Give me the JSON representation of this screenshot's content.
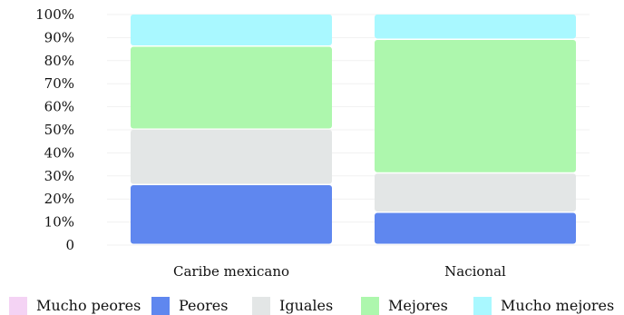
{
  "chart_data": {
    "type": "bar",
    "stacked": true,
    "categories": [
      "Caribe mexicano",
      "Nacional"
    ],
    "series": [
      {
        "name": "Mucho peores",
        "values": [
          0,
          0
        ],
        "color": "#f4d3f4"
      },
      {
        "name": "Peores",
        "values": [
          26,
          14
        ],
        "color": "#5f87ef"
      },
      {
        "name": "Iguales",
        "values": [
          24,
          17
        ],
        "color": "#e3e6e6"
      },
      {
        "name": "Mejores",
        "values": [
          36,
          58
        ],
        "color": "#adf7ad"
      },
      {
        "name": "Mucho mejores",
        "values": [
          14,
          11
        ],
        "color": "#a9f8ff"
      }
    ],
    "ylim": [
      0,
      100
    ],
    "yticks": [
      "0",
      "10%",
      "20%",
      "30%",
      "40%",
      "50%",
      "60%",
      "70%",
      "80%",
      "90%",
      "100%"
    ],
    "grid": true,
    "legend_position": "bottom"
  }
}
